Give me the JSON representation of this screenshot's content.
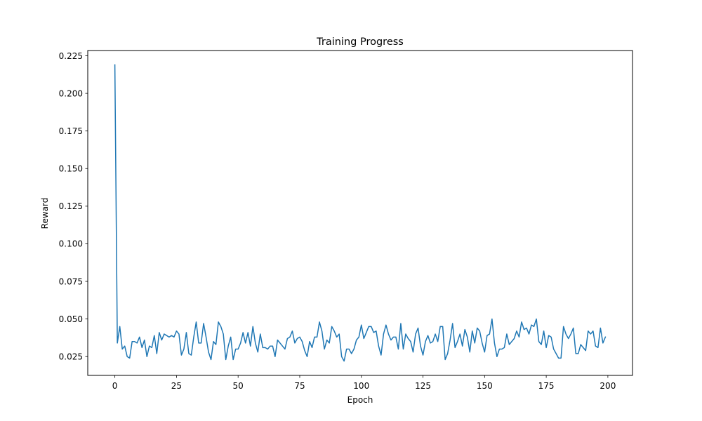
{
  "chart_data": {
    "type": "line",
    "title": "Training Progress",
    "xlabel": "Epoch",
    "ylabel": "Reward",
    "xlim": [
      -11,
      210
    ],
    "ylim": [
      0.0125,
      0.2285
    ],
    "xticks": [
      0,
      25,
      50,
      75,
      100,
      125,
      150,
      175,
      200
    ],
    "xtick_labels": [
      "0",
      "25",
      "50",
      "75",
      "100",
      "125",
      "150",
      "175",
      "200"
    ],
    "yticks": [
      0.025,
      0.05,
      0.075,
      0.1,
      0.125,
      0.15,
      0.175,
      0.2,
      0.225
    ],
    "ytick_labels": [
      "0.025",
      "0.050",
      "0.075",
      "0.100",
      "0.125",
      "0.150",
      "0.175",
      "0.200",
      "0.225"
    ],
    "grid": false,
    "series": [
      {
        "color": "#1f77b4",
        "x_start": 0,
        "x_step": 1,
        "values": [
          0.219,
          0.034,
          0.045,
          0.03,
          0.032,
          0.025,
          0.024,
          0.035,
          0.035,
          0.034,
          0.038,
          0.031,
          0.036,
          0.025,
          0.032,
          0.031,
          0.039,
          0.027,
          0.041,
          0.036,
          0.04,
          0.039,
          0.038,
          0.039,
          0.038,
          0.042,
          0.04,
          0.026,
          0.03,
          0.041,
          0.027,
          0.026,
          0.038,
          0.048,
          0.034,
          0.034,
          0.047,
          0.038,
          0.028,
          0.023,
          0.035,
          0.033,
          0.048,
          0.045,
          0.04,
          0.023,
          0.032,
          0.038,
          0.023,
          0.03,
          0.03,
          0.034,
          0.041,
          0.034,
          0.041,
          0.032,
          0.045,
          0.034,
          0.028,
          0.04,
          0.031,
          0.031,
          0.03,
          0.032,
          0.032,
          0.025,
          0.036,
          0.034,
          0.032,
          0.03,
          0.037,
          0.038,
          0.042,
          0.034,
          0.037,
          0.038,
          0.035,
          0.029,
          0.025,
          0.035,
          0.031,
          0.038,
          0.038,
          0.048,
          0.042,
          0.03,
          0.036,
          0.034,
          0.045,
          0.042,
          0.038,
          0.04,
          0.025,
          0.022,
          0.03,
          0.03,
          0.027,
          0.03,
          0.036,
          0.038,
          0.046,
          0.037,
          0.041,
          0.045,
          0.045,
          0.041,
          0.042,
          0.032,
          0.026,
          0.04,
          0.046,
          0.04,
          0.036,
          0.038,
          0.038,
          0.03,
          0.047,
          0.03,
          0.04,
          0.037,
          0.035,
          0.028,
          0.04,
          0.044,
          0.032,
          0.026,
          0.035,
          0.039,
          0.034,
          0.035,
          0.04,
          0.035,
          0.045,
          0.045,
          0.023,
          0.027,
          0.036,
          0.047,
          0.031,
          0.035,
          0.04,
          0.032,
          0.043,
          0.038,
          0.028,
          0.042,
          0.034,
          0.044,
          0.042,
          0.034,
          0.028,
          0.039,
          0.04,
          0.05,
          0.034,
          0.025,
          0.03,
          0.03,
          0.031,
          0.04,
          0.033,
          0.035,
          0.037,
          0.042,
          0.038,
          0.048,
          0.043,
          0.044,
          0.04,
          0.046,
          0.045,
          0.05,
          0.035,
          0.033,
          0.042,
          0.031,
          0.039,
          0.038,
          0.03,
          0.027,
          0.024,
          0.024,
          0.045,
          0.04,
          0.037,
          0.04,
          0.044,
          0.027,
          0.027,
          0.033,
          0.031,
          0.029,
          0.042,
          0.04,
          0.042,
          0.032,
          0.031,
          0.044,
          0.034,
          0.038
        ]
      }
    ]
  }
}
